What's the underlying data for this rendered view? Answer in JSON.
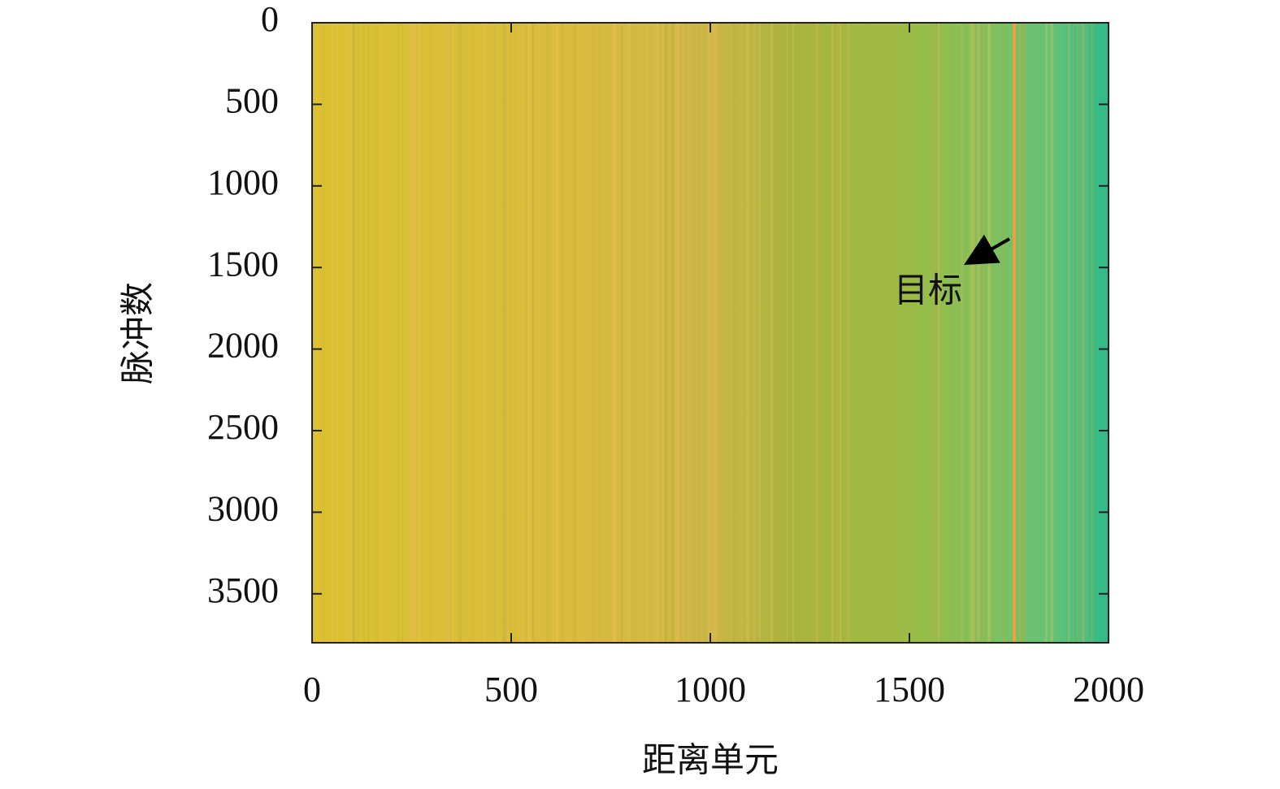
{
  "chart_data": {
    "type": "heatmap",
    "xlabel": "距离单元",
    "ylabel": "脉冲数",
    "xlim": [
      0,
      2000
    ],
    "xticks": [
      0,
      500,
      1000,
      1500,
      2000
    ],
    "ylim": [
      3800,
      0
    ],
    "yticks": [
      0,
      500,
      1000,
      1500,
      2000,
      2500,
      3000,
      3500
    ],
    "annotation": "目标"
  }
}
